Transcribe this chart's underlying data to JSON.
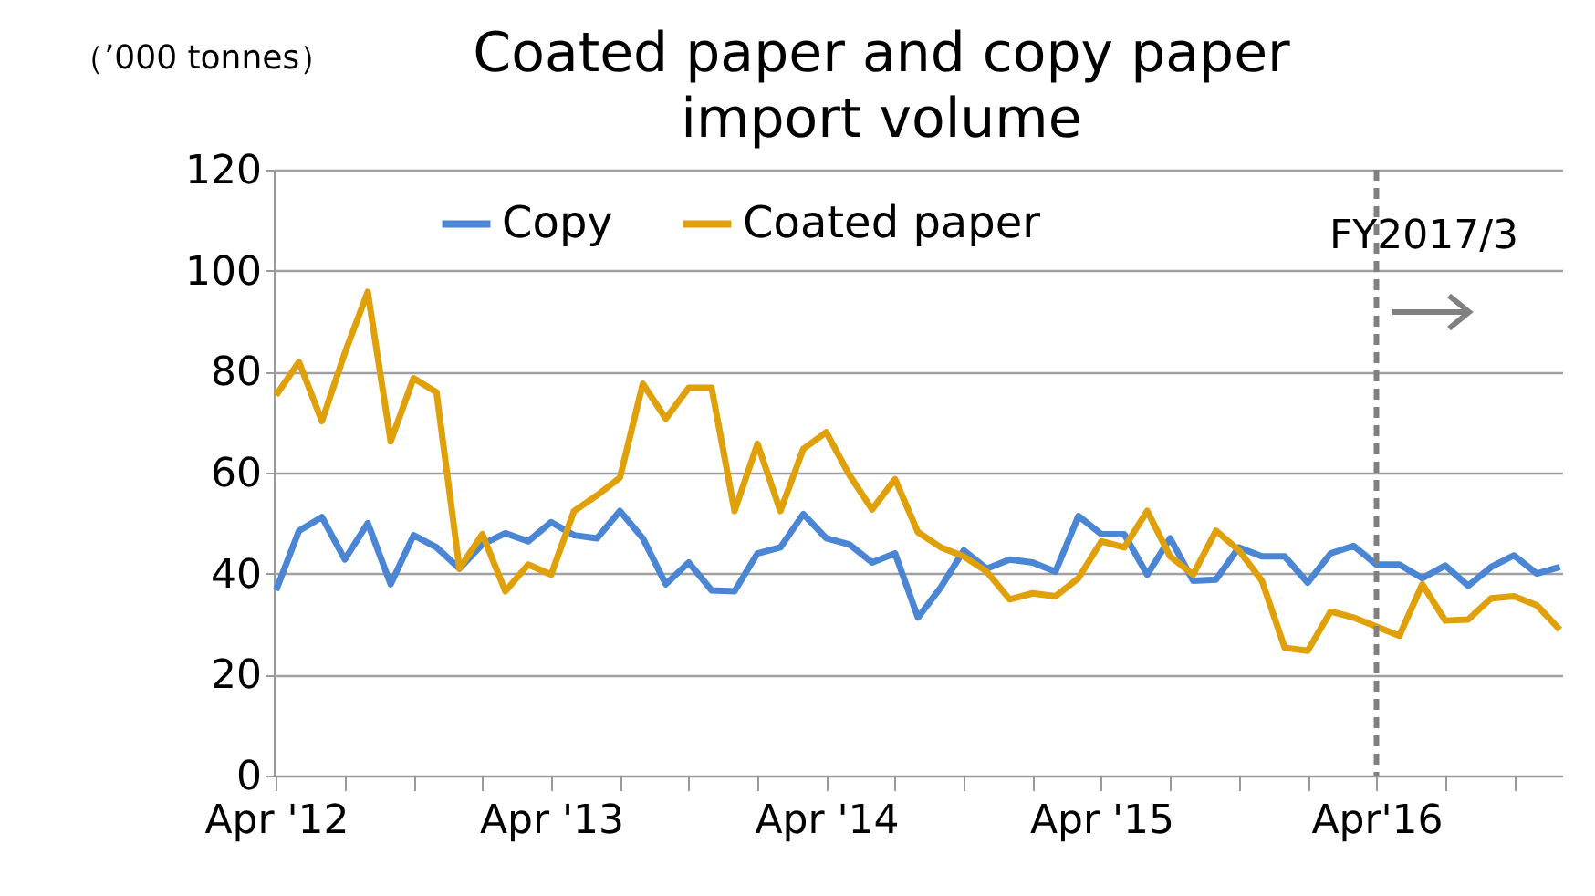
{
  "chart_data": {
    "type": "line",
    "title": "Coated paper and copy paper\nimport volume",
    "ylabel": "（’000 tonnes）",
    "categories": [
      "Apr '12",
      null,
      null,
      null,
      null,
      null,
      null,
      null,
      null,
      null,
      null,
      null,
      "Apr '13",
      null,
      null,
      null,
      null,
      null,
      null,
      null,
      null,
      null,
      null,
      null,
      "Apr '14",
      null,
      null,
      null,
      null,
      null,
      null,
      null,
      null,
      null,
      null,
      null,
      "Apr '15",
      null,
      null,
      null,
      null,
      null,
      null,
      null,
      null,
      null,
      null,
      null,
      "Apr'16",
      null,
      null,
      null,
      null,
      null,
      null,
      null,
      null
    ],
    "series": [
      {
        "name": "Copy",
        "color": "#4a86d4",
        "values": [
          36.7,
          48.5,
          51.2,
          42.8,
          50,
          37.9,
          47.6,
          45.2,
          41,
          45.8,
          48,
          46.4,
          50.2,
          47.6,
          47,
          52.4,
          47,
          37.9,
          42.2,
          36.7,
          36.5,
          44,
          45.2,
          51.8,
          47,
          45.8,
          42.2,
          44,
          31.3,
          37.3,
          44.6,
          41,
          42.8,
          42.2,
          40.4,
          51.4,
          47.8,
          47.8,
          39.8,
          47,
          38.6,
          38.8,
          45.2,
          43.4,
          43.4,
          38.2,
          44,
          45.5,
          41.8,
          41.8,
          39.1,
          41.6,
          37.6,
          41.3,
          43.6,
          40,
          41.3
        ]
      },
      {
        "name": "Coated paper",
        "color": "#e0a00a",
        "values": [
          75.3,
          81.9,
          70.2,
          83.7,
          95.8,
          66.2,
          78.7,
          75.9,
          41,
          47.8,
          36.5,
          41.8,
          39.8,
          52.4,
          55.5,
          59,
          77.6,
          70.7,
          76.8,
          76.8,
          52.4,
          65.7,
          52.4,
          64.7,
          68,
          59.6,
          52.7,
          58.7,
          48.2,
          45.2,
          43.4,
          40.4,
          34.9,
          36.1,
          35.5,
          39.1,
          46.4,
          45.2,
          52.4,
          43.4,
          39.8,
          48.5,
          44.6,
          38.6,
          25.3,
          24.7,
          32.5,
          31.3,
          29.5,
          27.7,
          37.9,
          30.7,
          30.9,
          35.1,
          35.5,
          33.7,
          28.9
        ]
      }
    ],
    "ylim": [
      0,
      120
    ],
    "yticks": [
      0,
      20,
      40,
      60,
      80,
      100,
      120
    ],
    "grid": "y",
    "legend": "top",
    "ref_lines": [
      {
        "axis": "x",
        "value": "Apr'16",
        "label": "FY2017/3",
        "color": "#808080",
        "line_style": "dashed"
      }
    ]
  }
}
